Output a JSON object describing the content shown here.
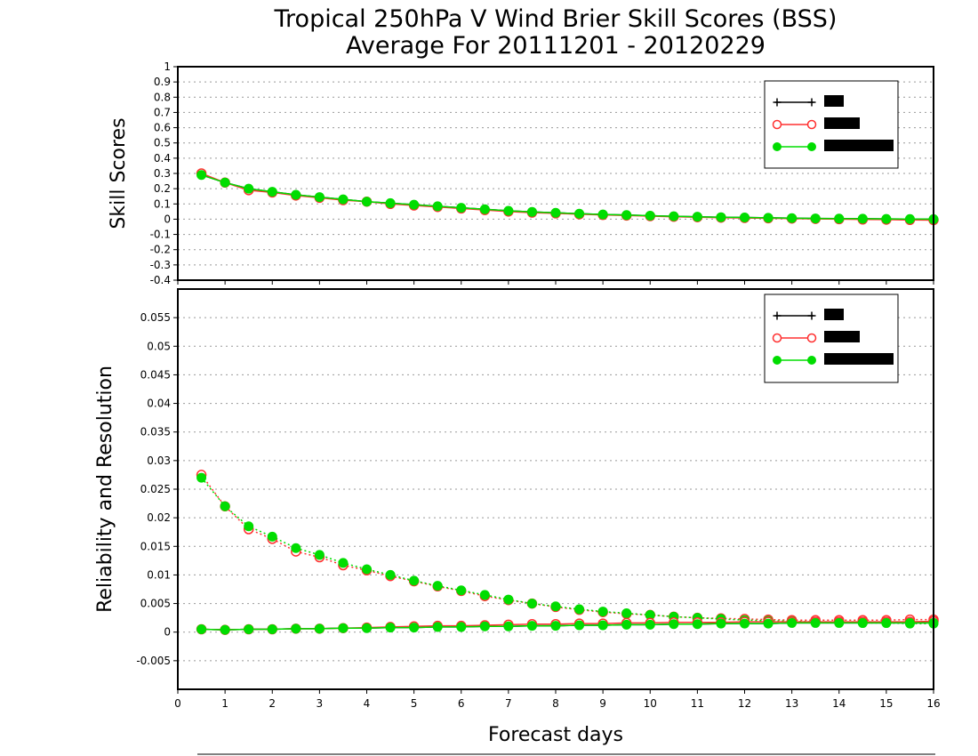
{
  "title": {
    "line1": "Tropical 250hPa V Wind Brier Skill Scores (BSS)",
    "line2": "Average For 20111201 - 20120229"
  },
  "xlabel": "Forecast days",
  "colors": {
    "series1": "#000000",
    "series2": "#ff3030",
    "series3": "#00dd00",
    "grid": "#999999"
  },
  "chart_data": [
    {
      "type": "line",
      "panel": "top",
      "ylabel": "Skill Scores",
      "xlim": [
        0,
        16
      ],
      "ylim": [
        -0.4,
        1
      ],
      "xticks": [
        "0",
        "1",
        "2",
        "3",
        "4",
        "5",
        "6",
        "7",
        "8",
        "9",
        "10",
        "11",
        "12",
        "13",
        "14",
        "15",
        "16"
      ],
      "yticks": [
        "1",
        "0.9",
        "0.8",
        "0.7",
        "0.6",
        "0.5",
        "0.4",
        "0.3",
        "0.2",
        "0.1",
        "0",
        "-0.1",
        "-0.2",
        "-0.3",
        "-0.4"
      ],
      "x": [
        0.5,
        1,
        1.5,
        2,
        2.5,
        3,
        3.5,
        4,
        4.5,
        5,
        5.5,
        6,
        6.5,
        7,
        7.5,
        8,
        8.5,
        9,
        9.5,
        10,
        10.5,
        11,
        11.5,
        12,
        12.5,
        13,
        13.5,
        14,
        14.5,
        15,
        15.5,
        16
      ],
      "legend": {
        "position": "top-right",
        "entries": [
          "",
          "",
          ""
        ]
      },
      "series": [
        {
          "marker": "plus",
          "color": "#000000",
          "values": [
            0.29,
            0.24,
            0.2,
            0.18,
            0.16,
            0.145,
            0.13,
            0.115,
            0.105,
            0.095,
            0.085,
            0.075,
            0.065,
            0.055,
            0.048,
            0.042,
            0.036,
            0.031,
            0.027,
            0.023,
            0.019,
            0.016,
            0.013,
            0.011,
            0.009,
            0.007,
            0.005,
            0.004,
            0.003,
            0.002,
            0.001,
            0.0
          ]
        },
        {
          "marker": "open-circle",
          "color": "#ff3030",
          "values": [
            0.3,
            0.24,
            0.19,
            0.175,
            0.155,
            0.14,
            0.125,
            0.115,
            0.1,
            0.09,
            0.08,
            0.07,
            0.06,
            0.05,
            0.043,
            0.038,
            0.032,
            0.028,
            0.024,
            0.02,
            0.016,
            0.013,
            0.01,
            0.008,
            0.006,
            0.004,
            0.002,
            0.0,
            -0.002,
            -0.003,
            -0.005,
            -0.006
          ]
        },
        {
          "marker": "filled-circle",
          "color": "#00dd00",
          "values": [
            0.29,
            0.24,
            0.2,
            0.18,
            0.16,
            0.145,
            0.13,
            0.115,
            0.105,
            0.095,
            0.085,
            0.075,
            0.065,
            0.055,
            0.048,
            0.042,
            0.036,
            0.031,
            0.027,
            0.023,
            0.019,
            0.016,
            0.013,
            0.011,
            0.009,
            0.007,
            0.005,
            0.004,
            0.003,
            0.002,
            0.001,
            0.0
          ]
        }
      ]
    },
    {
      "type": "line",
      "panel": "bottom",
      "ylabel": "Reliability and Resolution",
      "xlim": [
        0,
        16
      ],
      "ylim": [
        -0.01,
        0.06
      ],
      "xticks": [
        "0",
        "1",
        "2",
        "3",
        "4",
        "5",
        "6",
        "7",
        "8",
        "9",
        "10",
        "11",
        "12",
        "13",
        "14",
        "15",
        "16"
      ],
      "yticks": [
        "0.055",
        "0.05",
        "0.045",
        "0.04",
        "0.035",
        "0.03",
        "0.025",
        "0.02",
        "0.015",
        "0.01",
        "0.005",
        "0",
        "-0.005"
      ],
      "x": [
        0.5,
        1,
        1.5,
        2,
        2.5,
        3,
        3.5,
        4,
        4.5,
        5,
        5.5,
        6,
        6.5,
        7,
        7.5,
        8,
        8.5,
        9,
        9.5,
        10,
        10.5,
        11,
        11.5,
        12,
        12.5,
        13,
        13.5,
        14,
        14.5,
        15,
        15.5,
        16
      ],
      "legend": {
        "position": "top-right",
        "entries": [
          "",
          "",
          ""
        ]
      },
      "series": [
        {
          "marker": "open-circle",
          "color": "#ff3030",
          "style": "dotted",
          "metric": "resolution",
          "values": [
            0.0275,
            0.022,
            0.018,
            0.0163,
            0.0141,
            0.0131,
            0.0117,
            0.0108,
            0.0098,
            0.0089,
            0.008,
            0.0072,
            0.0063,
            0.0056,
            0.005,
            0.0044,
            0.0039,
            0.0035,
            0.0032,
            0.003,
            0.0027,
            0.0025,
            0.0024,
            0.0023,
            0.0022,
            0.0021,
            0.0021,
            0.0021,
            0.0021,
            0.0021,
            0.0022,
            0.0022
          ]
        },
        {
          "marker": "filled-circle",
          "color": "#00dd00",
          "style": "dotted",
          "metric": "resolution",
          "values": [
            0.027,
            0.022,
            0.0185,
            0.0167,
            0.0147,
            0.0135,
            0.0121,
            0.011,
            0.01,
            0.009,
            0.0081,
            0.0073,
            0.0065,
            0.0057,
            0.005,
            0.0045,
            0.004,
            0.0036,
            0.0033,
            0.003,
            0.0027,
            0.0025,
            0.0023,
            0.0021,
            0.002,
            0.0019,
            0.0018,
            0.0017,
            0.0016,
            0.0016,
            0.0015,
            0.0015
          ]
        },
        {
          "marker": "plus",
          "color": "#000000",
          "style": "solid",
          "metric": "reliability",
          "values": [
            0.0005,
            0.0004,
            0.0005,
            0.0005,
            0.0006,
            0.0006,
            0.0007,
            0.0007,
            0.0008,
            0.0008,
            0.0009,
            0.0009,
            0.001,
            0.001,
            0.0011,
            0.0011,
            0.0012,
            0.0012,
            0.0013,
            0.0013,
            0.0014,
            0.0014,
            0.0015,
            0.0015,
            0.0015,
            0.0016,
            0.0016,
            0.0016,
            0.0016,
            0.0016,
            0.0016,
            0.0016
          ]
        },
        {
          "marker": "open-circle",
          "color": "#ff3030",
          "style": "solid",
          "metric": "reliability",
          "values": [
            0.0005,
            0.0004,
            0.0005,
            0.0005,
            0.0006,
            0.0006,
            0.0007,
            0.0008,
            0.0009,
            0.001,
            0.0011,
            0.0011,
            0.0012,
            0.0013,
            0.0014,
            0.0014,
            0.0015,
            0.0015,
            0.0016,
            0.0016,
            0.0017,
            0.0017,
            0.0017,
            0.0018,
            0.0018,
            0.0018,
            0.0018,
            0.0018,
            0.0018,
            0.0018,
            0.0018,
            0.0019
          ]
        },
        {
          "marker": "filled-circle",
          "color": "#00dd00",
          "style": "solid",
          "metric": "reliability",
          "values": [
            0.0005,
            0.0004,
            0.0005,
            0.0005,
            0.0006,
            0.0006,
            0.0007,
            0.0007,
            0.0008,
            0.0008,
            0.0009,
            0.0009,
            0.001,
            0.001,
            0.0011,
            0.0011,
            0.0012,
            0.0012,
            0.0013,
            0.0013,
            0.0014,
            0.0014,
            0.0015,
            0.0015,
            0.0015,
            0.0016,
            0.0016,
            0.0016,
            0.0016,
            0.0016,
            0.0016,
            0.0016
          ]
        }
      ]
    }
  ]
}
